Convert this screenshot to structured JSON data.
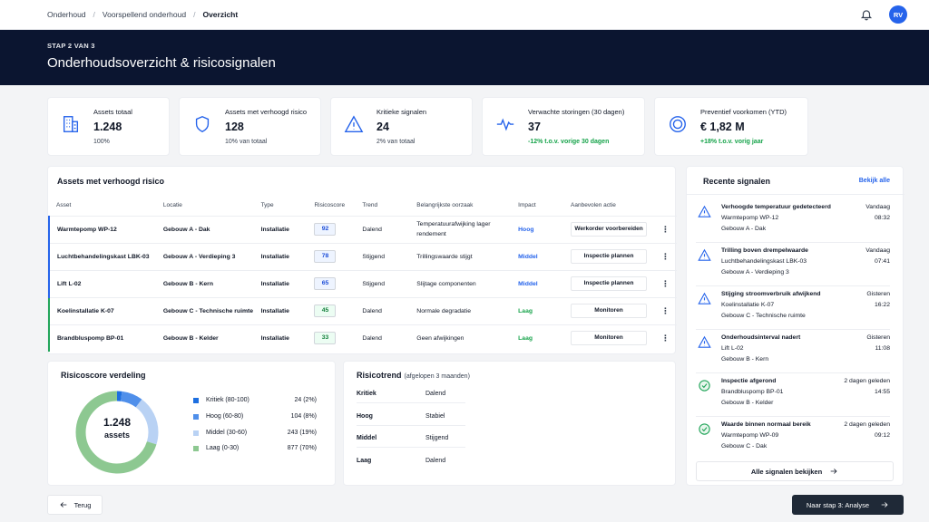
{
  "breadcrumb": [
    "Onderhoud",
    "Voorspellend onderhoud",
    "Overzicht"
  ],
  "user": {
    "initials": "RV"
  },
  "hero": {
    "step": "STAP 2 VAN 3",
    "title": "Onderhoudsoverzicht & risicosignalen"
  },
  "kpis": [
    {
      "label": "Assets totaal",
      "value": "1.248",
      "sub": "100%",
      "icon": "building-icon"
    },
    {
      "label": "Assets met verhoogd risico",
      "value": "128",
      "sub": "10% van totaal",
      "icon": "shield-icon"
    },
    {
      "label": "Kritieke signalen",
      "value": "24",
      "sub": "2% van totaal",
      "icon": "warning-icon"
    },
    {
      "label": "Verwachte storingen (30 dagen)",
      "value": "37",
      "sub": "-12% t.o.v. vorige 30 dagen",
      "icon": "pulse-icon"
    },
    {
      "label": "Preventief voorkomen (YTD)",
      "value": "€ 1,82 M",
      "sub": "+18% t.o.v. vorig jaar",
      "icon": "target-icon"
    }
  ],
  "assets_table": {
    "title": "Assets met verhoogd risico",
    "headers": [
      "Asset",
      "Locatie",
      "Type",
      "Risicoscore",
      "Trend",
      "Belangrijkste oorzaak",
      "Impact",
      "Aanbevolen actie"
    ],
    "rows": [
      {
        "asset": "Warmtepomp WP-12",
        "location": "Gebouw A - Dak",
        "type": "Installatie",
        "score": "92",
        "trend": "Dalend",
        "cause": "Temperatuurafwijking lager rendement",
        "impact": "Hoog",
        "action": "Werkorder voorbereiden"
      },
      {
        "asset": "Luchtbehandelingskast LBK-03",
        "location": "Gebouw A - Verdieping 3",
        "type": "Installatie",
        "score": "78",
        "trend": "Stijgend",
        "cause": "Trillingswaarde stijgt",
        "impact": "Middel",
        "action": "Inspectie plannen"
      },
      {
        "asset": "Lift L-02",
        "location": "Gebouw B - Kern",
        "type": "Installatie",
        "score": "65",
        "trend": "Stijgend",
        "cause": "Slijtage componenten",
        "impact": "Middel",
        "action": "Inspectie plannen"
      },
      {
        "asset": "Koelinstallatie K-07",
        "location": "Gebouw C - Technische ruimte",
        "type": "Installatie",
        "score": "45",
        "trend": "Dalend",
        "cause": "Normale degradatie",
        "impact": "Laag",
        "action": "Monitoren"
      },
      {
        "asset": "Brandbluspomp BP-01",
        "location": "Gebouw B - Kelder",
        "type": "Installatie",
        "score": "33",
        "trend": "Dalend",
        "cause": "Geen afwijkingen",
        "impact": "Laag",
        "action": "Monitoren"
      }
    ]
  },
  "distribution": {
    "title": "Risicoscore verdeling",
    "total": "1.248",
    "total_label": "assets",
    "segments": [
      {
        "label": "Kritiek (80-100)",
        "value": "24 (2%)",
        "count": 24,
        "color": "#1d6fe0"
      },
      {
        "label": "Hoog (60-80)",
        "value": "104 (8%)",
        "count": 104,
        "color": "#4f8fea"
      },
      {
        "label": "Middel (30-60)",
        "value": "243 (19%)",
        "count": 243,
        "color": "#b9d2f4"
      },
      {
        "label": "Laag (0-30)",
        "value": "877 (70%)",
        "count": 877,
        "color": "#8dc891"
      }
    ]
  },
  "trend": {
    "title": "Risicotrend",
    "subtitle": "(afgelopen 3 maanden)",
    "rows": [
      {
        "name": "Kritiek",
        "value": "Dalend"
      },
      {
        "name": "Hoog",
        "value": "Stabiel"
      },
      {
        "name": "Middel",
        "value": "Stijgend"
      },
      {
        "name": "Laag",
        "value": "Dalend"
      }
    ]
  },
  "signals": {
    "title": "Recente signalen",
    "view_all": "Bekijk alle",
    "all_button": "Alle signalen bekijken",
    "items": [
      {
        "title": "Verhoogde temperatuur gedetecteerd",
        "asset": "Warmtepomp WP-12",
        "location": "Gebouw A - Dak",
        "day": "Vandaag",
        "time": "08:32",
        "icon": "warning-icon"
      },
      {
        "title": "Trilling boven drempelwaarde",
        "asset": "Luchtbehandelingskast LBK-03",
        "location": "Gebouw A - Verdieping 3",
        "day": "Vandaag",
        "time": "07:41",
        "icon": "warning-icon"
      },
      {
        "title": "Stijging stroomverbruik afwijkend",
        "asset": "Koelinstallatie K-07",
        "location": "Gebouw C - Technische ruimte",
        "day": "Gisteren",
        "time": "16:22",
        "icon": "warning-icon"
      },
      {
        "title": "Onderhoudsinterval nadert",
        "asset": "Lift L-02",
        "location": "Gebouw B - Kern",
        "day": "Gisteren",
        "time": "11:08",
        "icon": "warning-icon"
      },
      {
        "title": "Inspectie afgerond",
        "asset": "Brandbluspomp BP-01",
        "location": "Gebouw B - Kelder",
        "day": "2 dagen geleden",
        "time": "14:55",
        "icon": "check-circle-icon"
      },
      {
        "title": "Waarde binnen normaal bereik",
        "asset": "Warmtepomp WP-09",
        "location": "Gebouw C - Dak",
        "day": "2 dagen geleden",
        "time": "09:12",
        "icon": "check-circle-icon"
      }
    ]
  },
  "footer": {
    "back": "Terug",
    "next": "Naar stap 3: Analyse"
  },
  "colors": {
    "hero": "#0b1530",
    "accent": "#2563eb",
    "success": "#16a34a"
  }
}
